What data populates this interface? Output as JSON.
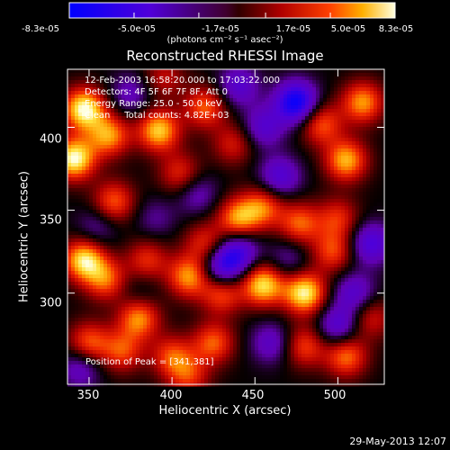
{
  "chart_data": {
    "type": "heatmap",
    "title": "Reconstructed RHESSI Image",
    "xlabel": "Heliocentric X (arcsec)",
    "ylabel": "Heliocentric Y (arcsec)",
    "xlim": [
      337,
      528
    ],
    "ylim": [
      245,
      435
    ],
    "x_ticks": [
      350,
      400,
      450,
      500
    ],
    "y_ticks": [
      300,
      350,
      400
    ],
    "colorbar": {
      "ticks": [
        "-8.3e-05",
        "-5.0e-05",
        "-1.7e-05",
        "1.7e-05",
        "5.0e-05",
        "8.3e-05"
      ],
      "units": "(photons cm⁻² s⁻¹ asec⁻²)",
      "range": [
        -8.3e-05,
        8.3e-05
      ]
    },
    "annotations": [
      "12-Feb-2003 16:58:20.000 to 17:03:22.000",
      "Detectors: 4F 5F 6F 7F 8F, Att 0",
      "Energy Range: 25.0 - 50.0 keV",
      "Clean     Total counts: 4.82E+03"
    ],
    "peak_text": "Position of Peak = [341,381]",
    "blobs": [
      {
        "x": 347,
        "y": 411,
        "v": 8.3e-05
      },
      {
        "x": 341,
        "y": 381,
        "v": 8.3e-05
      },
      {
        "x": 362,
        "y": 395,
        "v": 6e-05
      },
      {
        "x": 392,
        "y": 398,
        "v": 7e-05
      },
      {
        "x": 420,
        "y": 412,
        "v": 5e-05
      },
      {
        "x": 405,
        "y": 372,
        "v": 4e-05
      },
      {
        "x": 437,
        "y": 390,
        "v": 3.5e-05
      },
      {
        "x": 395,
        "y": 430,
        "v": 3e-05
      },
      {
        "x": 440,
        "y": 345,
        "v": 6e-05
      },
      {
        "x": 455,
        "y": 352,
        "v": 5e-05
      },
      {
        "x": 477,
        "y": 342,
        "v": 5e-05
      },
      {
        "x": 500,
        "y": 345,
        "v": 4e-05
      },
      {
        "x": 420,
        "y": 330,
        "v": 4e-05
      },
      {
        "x": 410,
        "y": 310,
        "v": 6e-05
      },
      {
        "x": 430,
        "y": 300,
        "v": 5e-05
      },
      {
        "x": 455,
        "y": 305,
        "v": 7.5e-05
      },
      {
        "x": 480,
        "y": 300,
        "v": 8e-05
      },
      {
        "x": 497,
        "y": 325,
        "v": 4.5e-05
      },
      {
        "x": 505,
        "y": 380,
        "v": 6.5e-05
      },
      {
        "x": 515,
        "y": 415,
        "v": 6e-05
      },
      {
        "x": 490,
        "y": 402,
        "v": 5e-05
      },
      {
        "x": 385,
        "y": 320,
        "v": 4e-05
      },
      {
        "x": 365,
        "y": 355,
        "v": 5e-05
      },
      {
        "x": 347,
        "y": 320,
        "v": 7.5e-05
      },
      {
        "x": 360,
        "y": 308,
        "v": 5e-05
      },
      {
        "x": 380,
        "y": 285,
        "v": 6e-05
      },
      {
        "x": 370,
        "y": 265,
        "v": 4.5e-05
      },
      {
        "x": 350,
        "y": 270,
        "v": 5e-05
      },
      {
        "x": 400,
        "y": 262,
        "v": 4.5e-05
      },
      {
        "x": 425,
        "y": 270,
        "v": 5e-05
      },
      {
        "x": 410,
        "y": 250,
        "v": 4e-05
      },
      {
        "x": 480,
        "y": 268,
        "v": 4.5e-05
      },
      {
        "x": 505,
        "y": 262,
        "v": 5.5e-05
      },
      {
        "x": 520,
        "y": 285,
        "v": 3.5e-05
      },
      {
        "x": 390,
        "y": 345,
        "v": -2e-05
      },
      {
        "x": 475,
        "y": 415,
        "v": -8e-05
      },
      {
        "x": 455,
        "y": 400,
        "v": -4e-05
      },
      {
        "x": 465,
        "y": 370,
        "v": -4.5e-05
      },
      {
        "x": 430,
        "y": 315,
        "v": -5.5e-05
      },
      {
        "x": 440,
        "y": 325,
        "v": -5e-05
      },
      {
        "x": 500,
        "y": 280,
        "v": -4.5e-05
      },
      {
        "x": 520,
        "y": 330,
        "v": -5e-05
      },
      {
        "x": 510,
        "y": 300,
        "v": -4e-05
      },
      {
        "x": 460,
        "y": 270,
        "v": -3.5e-05
      },
      {
        "x": 375,
        "y": 420,
        "v": -3e-05
      },
      {
        "x": 440,
        "y": 425,
        "v": -4e-05
      },
      {
        "x": 415,
        "y": 360,
        "v": -3e-05
      },
      {
        "x": 355,
        "y": 340,
        "v": -2.5e-05
      },
      {
        "x": 380,
        "y": 300,
        "v": -1.5e-05
      },
      {
        "x": 470,
        "y": 320,
        "v": -2.5e-05
      },
      {
        "x": 345,
        "y": 255,
        "v": -3.5e-05
      }
    ]
  },
  "footer": "29-May-2013 12:07"
}
